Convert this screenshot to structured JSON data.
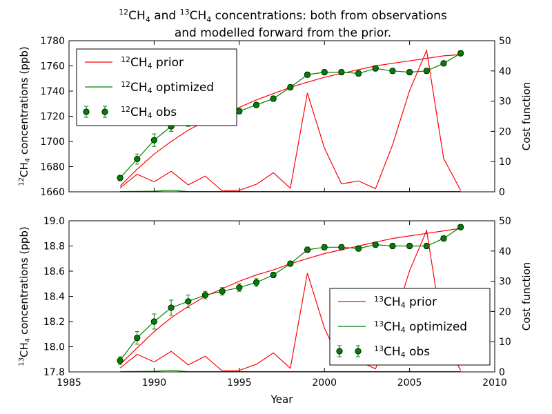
{
  "title": {
    "line1": {
      "a_sup": "12",
      "a": "CH",
      "a_sub": "4",
      "b": " and ",
      "c_sup": "13",
      "c": "CH",
      "c_sub": "4",
      "d": " concentrations: both from observations"
    },
    "line2": "and modelled forward from the prior."
  },
  "chart_data": [
    {
      "type": "line",
      "title": "",
      "xlabel": "",
      "ylabel": {
        "sup": "12",
        "main": "CH",
        "sub": "4",
        "rest": " concentrations (ppb)"
      },
      "y2label": "Cost function",
      "xlim": [
        1985,
        2010
      ],
      "ylim": [
        1660,
        1780
      ],
      "y2lim": [
        0,
        50
      ],
      "yticks": [
        1660,
        1680,
        1700,
        1720,
        1740,
        1760,
        1780
      ],
      "y2ticks": [
        0,
        10,
        20,
        30,
        40,
        50
      ],
      "xticks": [],
      "grid": false,
      "legend_position": "upper-left",
      "series": [
        {
          "name": {
            "sup": "12",
            "main": "CH",
            "sub": "4",
            "rest": " prior"
          },
          "axis": "left",
          "color": "#ff0000",
          "kind": "line",
          "x": [
            1988,
            1989,
            1990,
            1991,
            1992,
            1993,
            1994,
            1995,
            1996,
            1997,
            1998,
            1999,
            2000,
            2001,
            2002,
            2003,
            2004,
            2005,
            2006,
            2007,
            2008
          ],
          "y": [
            1664.5,
            1678,
            1690,
            1700,
            1709,
            1716,
            1722,
            1727,
            1733,
            1738,
            1743,
            1747,
            1751,
            1754,
            1757,
            1760,
            1762,
            1764,
            1766,
            1768,
            1769
          ]
        },
        {
          "name": {
            "sup": "12",
            "main": "CH",
            "sub": "4",
            "rest": " optimized"
          },
          "axis": "left",
          "color": "#008000",
          "kind": "line",
          "x": [
            1988,
            1989,
            1990,
            1991,
            1992,
            1993,
            1994,
            1995,
            1996,
            1997,
            1998,
            1999,
            2000,
            2001,
            2002,
            2003,
            2004,
            2005,
            2006,
            2007,
            2008
          ],
          "y": [
            1671,
            1686,
            1701,
            1712,
            1715,
            1718,
            1720,
            1724,
            1729,
            1734,
            1743,
            1753,
            1755,
            1755,
            1754,
            1758,
            1756,
            1755,
            1756,
            1762,
            1770
          ]
        },
        {
          "name": {
            "sup": "12",
            "main": "CH",
            "sub": "4",
            "rest": " obs"
          },
          "axis": "left",
          "color": "#008000",
          "kind": "errorbar",
          "x": [
            1988,
            1989,
            1990,
            1991,
            1992,
            1993,
            1994,
            1995,
            1996,
            1997,
            1998,
            1999,
            2000,
            2001,
            2002,
            2003,
            2004,
            2005,
            2006,
            2007,
            2008
          ],
          "y": [
            1671,
            1686,
            1701,
            1712,
            1715,
            1718,
            1720,
            1724,
            1729,
            1734,
            1743,
            1753,
            1755,
            1755,
            1754,
            1758,
            1756,
            1755,
            1756,
            1762,
            1770
          ],
          "err": [
            2,
            4,
            5,
            4,
            3,
            2,
            2,
            2,
            2,
            2,
            2,
            2,
            2,
            2,
            2,
            2,
            2,
            2,
            2,
            2,
            2
          ]
        },
        {
          "name": "",
          "axis": "right",
          "color": "#ff0000",
          "kind": "line",
          "x": [
            1988,
            1989,
            1990,
            1991,
            1992,
            1993,
            1994,
            1995,
            1996,
            1997,
            1998,
            1999,
            2000,
            2001,
            2002,
            2003,
            2004,
            2005,
            2006,
            2007,
            2008
          ],
          "y": [
            1.3,
            5.8,
            3.3,
            6.8,
            2.3,
            5.2,
            0.3,
            0.5,
            2.5,
            6.3,
            1.2,
            32.7,
            14.5,
            2.6,
            3.6,
            1.0,
            15.5,
            33.5,
            46.8,
            11.0,
            0.5
          ]
        },
        {
          "name": "",
          "axis": "right",
          "color": "#008000",
          "kind": "line",
          "x": [
            1988,
            1990,
            1991,
            1992,
            1994,
            1996,
            1998,
            2000,
            2002,
            2004,
            2006,
            2008
          ],
          "y": [
            0.1,
            0.2,
            0.5,
            0.1,
            0.1,
            0.1,
            0.1,
            0.1,
            0.1,
            0.1,
            0.1,
            0.1
          ]
        }
      ]
    },
    {
      "type": "line",
      "title": "",
      "xlabel": "Year",
      "ylabel": {
        "sup": "13",
        "main": "CH",
        "sub": "4",
        "rest": " concentrations (ppb)"
      },
      "y2label": "Cost function",
      "xlim": [
        1985,
        2010
      ],
      "ylim": [
        17.8,
        19.0
      ],
      "y2lim": [
        0,
        50
      ],
      "yticks": [
        "17.8",
        "18.0",
        "18.2",
        "18.4",
        "18.6",
        "18.8",
        "19.0"
      ],
      "y2ticks": [
        0,
        10,
        20,
        30,
        40,
        50
      ],
      "xticks": [
        1985,
        1990,
        1995,
        2000,
        2005,
        2010
      ],
      "grid": false,
      "legend_position": "lower-right",
      "series": [
        {
          "name": {
            "sup": "13",
            "main": "CH",
            "sub": "4",
            "rest": " prior"
          },
          "axis": "left",
          "color": "#ff0000",
          "kind": "line",
          "x": [
            1988,
            1989,
            1990,
            1991,
            1992,
            1993,
            1994,
            1995,
            1996,
            1997,
            1998,
            1999,
            2000,
            2001,
            2002,
            2003,
            2004,
            2005,
            2006,
            2007,
            2008
          ],
          "y": [
            17.86,
            17.99,
            18.12,
            18.23,
            18.32,
            18.4,
            18.46,
            18.52,
            18.57,
            18.61,
            18.66,
            18.7,
            18.74,
            18.77,
            18.8,
            18.83,
            18.86,
            18.88,
            18.9,
            18.92,
            18.94
          ]
        },
        {
          "name": {
            "sup": "13",
            "main": "CH",
            "sub": "4",
            "rest": " optimized"
          },
          "axis": "left",
          "color": "#008000",
          "kind": "line",
          "x": [
            1988,
            1989,
            1990,
            1991,
            1992,
            1993,
            1994,
            1995,
            1996,
            1997,
            1998,
            1999,
            2000,
            2001,
            2002,
            2003,
            2004,
            2005,
            2006,
            2007,
            2008
          ],
          "y": [
            17.89,
            18.07,
            18.2,
            18.31,
            18.36,
            18.41,
            18.44,
            18.47,
            18.51,
            18.57,
            18.66,
            18.77,
            18.79,
            18.79,
            18.78,
            18.81,
            18.8,
            18.8,
            18.8,
            18.86,
            18.95
          ]
        },
        {
          "name": {
            "sup": "13",
            "main": "CH",
            "sub": "4",
            "rest": " obs"
          },
          "axis": "left",
          "color": "#008000",
          "kind": "errorbar",
          "x": [
            1988,
            1989,
            1990,
            1991,
            1992,
            1993,
            1994,
            1995,
            1996,
            1997,
            1998,
            1999,
            2000,
            2001,
            2002,
            2003,
            2004,
            2005,
            2006,
            2007,
            2008
          ],
          "y": [
            17.89,
            18.07,
            18.2,
            18.31,
            18.36,
            18.41,
            18.44,
            18.47,
            18.51,
            18.57,
            18.66,
            18.77,
            18.79,
            18.79,
            18.78,
            18.81,
            18.8,
            18.8,
            18.8,
            18.86,
            18.95
          ],
          "err": [
            0.03,
            0.05,
            0.06,
            0.06,
            0.05,
            0.03,
            0.03,
            0.03,
            0.03,
            0.02,
            0.02,
            0.02,
            0.02,
            0.02,
            0.02,
            0.02,
            0.02,
            0.02,
            0.02,
            0.02,
            0.02
          ]
        },
        {
          "name": "",
          "axis": "right",
          "color": "#ff0000",
          "kind": "line",
          "x": [
            1988,
            1989,
            1990,
            1991,
            1992,
            1993,
            1994,
            1995,
            1996,
            1997,
            1998,
            1999,
            2000,
            2001,
            2002,
            2003,
            2004,
            2005,
            2006,
            2007,
            2008
          ],
          "y": [
            1.3,
            5.8,
            3.3,
            6.8,
            2.3,
            5.2,
            0.3,
            0.5,
            2.5,
            6.3,
            1.2,
            32.7,
            14.5,
            2.6,
            3.6,
            1.0,
            15.5,
            33.5,
            46.8,
            11.0,
            0.5
          ]
        },
        {
          "name": "",
          "axis": "right",
          "color": "#008000",
          "kind": "line",
          "x": [
            1988,
            1990,
            1991,
            1992,
            1994,
            1996,
            1998,
            2000,
            2002,
            2004,
            2006,
            2008
          ],
          "y": [
            0.1,
            0.2,
            0.5,
            0.1,
            0.1,
            0.1,
            0.1,
            0.1,
            0.1,
            0.1,
            0.1,
            0.1
          ]
        }
      ]
    }
  ]
}
